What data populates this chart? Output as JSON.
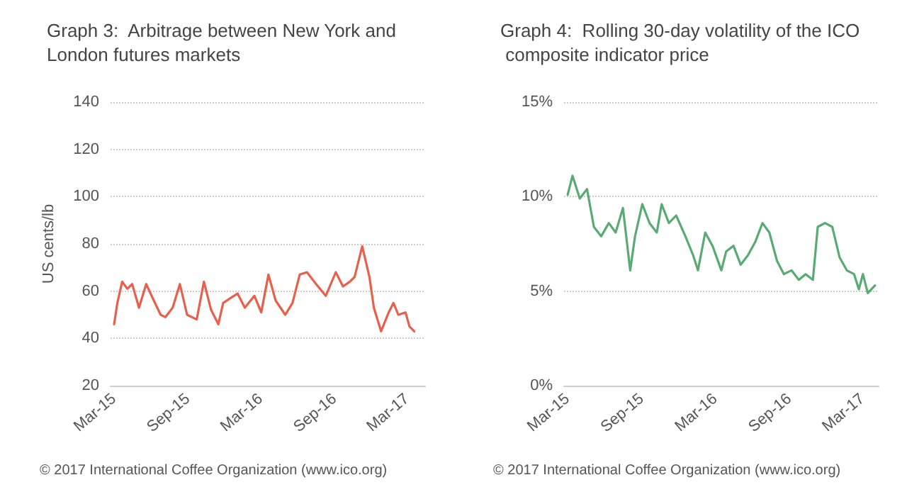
{
  "chart_data": [
    {
      "type": "line",
      "title": "Graph 3:  Arbitrage between New York and London futures markets",
      "ylabel": "US cents/lb",
      "x": [
        "2015-03-01",
        "2015-03-09",
        "2015-03-21",
        "2015-04-03",
        "2015-04-15",
        "2015-05-02",
        "2015-05-20",
        "2015-06-08",
        "2015-06-25",
        "2015-07-07",
        "2015-07-25",
        "2015-08-12",
        "2015-08-30",
        "2015-09-23",
        "2015-10-11",
        "2015-10-29",
        "2015-11-16",
        "2015-11-28",
        "2015-12-16",
        "2016-01-03",
        "2016-01-21",
        "2016-02-14",
        "2016-03-02",
        "2016-03-20",
        "2016-04-07",
        "2016-05-01",
        "2016-05-19",
        "2016-06-06",
        "2016-06-24",
        "2016-07-17",
        "2016-08-10",
        "2016-09-04",
        "2016-09-22",
        "2016-10-09",
        "2016-10-21",
        "2016-11-09",
        "2016-11-27",
        "2016-12-08",
        "2016-12-26",
        "2017-01-14",
        "2017-01-26",
        "2017-02-07",
        "2017-02-25",
        "2017-03-07",
        "2017-03-19"
      ],
      "series": [
        {
          "color": "#e8604c",
          "values": [
            46,
            55,
            64,
            61,
            63,
            53,
            63,
            56,
            50,
            49,
            53,
            63,
            50,
            48,
            64,
            52,
            46,
            55,
            57,
            59,
            53,
            58,
            51,
            67,
            56,
            50,
            55,
            67,
            68,
            63,
            58,
            68,
            62,
            64,
            66,
            79,
            66,
            53,
            43,
            51,
            55,
            50,
            51,
            45,
            43
          ]
        }
      ],
      "xlim": [
        "2015-02-20",
        "2017-04-15"
      ],
      "xticks": [
        {
          "value": "2015-03-01",
          "label": "Mar-15"
        },
        {
          "value": "2015-09-01",
          "label": "Sep-15"
        },
        {
          "value": "2016-03-01",
          "label": "Mar-16"
        },
        {
          "value": "2016-09-01",
          "label": "Sep-16"
        },
        {
          "value": "2017-03-01",
          "label": "Mar-17"
        }
      ],
      "ylim": [
        20,
        140
      ],
      "yticks": [
        20,
        40,
        60,
        80,
        100,
        120,
        140
      ],
      "grid": "y",
      "marker": "none",
      "line_style": "solid",
      "annotations": [
        "© 2017 International Coffee Organization (www.ico.org)"
      ]
    },
    {
      "type": "line",
      "title": "Graph 4:  Rolling 30-day volatility of the ICO composite indicator price",
      "x": [
        "2015-03-01",
        "2015-03-13",
        "2015-03-31",
        "2015-04-18",
        "2015-05-05",
        "2015-05-23",
        "2015-06-11",
        "2015-06-28",
        "2015-07-16",
        "2015-08-03",
        "2015-08-15",
        "2015-09-02",
        "2015-09-20",
        "2015-10-08",
        "2015-10-20",
        "2015-11-07",
        "2015-11-25",
        "2015-12-18",
        "2016-01-06",
        "2016-01-18",
        "2016-02-05",
        "2016-02-23",
        "2016-03-16",
        "2016-03-28",
        "2016-04-15",
        "2016-05-03",
        "2016-05-21",
        "2016-06-08",
        "2016-06-26",
        "2016-07-13",
        "2016-08-01",
        "2016-08-18",
        "2016-09-06",
        "2016-09-24",
        "2016-10-11",
        "2016-10-29",
        "2016-11-10",
        "2016-11-28",
        "2016-12-16",
        "2017-01-03",
        "2017-01-21",
        "2017-02-08",
        "2017-02-20",
        "2017-03-02",
        "2017-03-14",
        "2017-04-01"
      ],
      "series": [
        {
          "color": "#5aaa74",
          "values": [
            10.1,
            11.1,
            9.9,
            10.4,
            8.4,
            7.9,
            8.6,
            8.1,
            9.4,
            6.1,
            7.9,
            9.6,
            8.6,
            8.1,
            9.6,
            8.6,
            9.0,
            7.9,
            6.9,
            6.1,
            8.1,
            7.4,
            6.1,
            7.1,
            7.4,
            6.4,
            6.9,
            7.6,
            8.6,
            8.1,
            6.6,
            5.9,
            6.1,
            5.6,
            5.9,
            5.6,
            8.4,
            8.6,
            8.4,
            6.8,
            6.1,
            5.9,
            5.1,
            5.9,
            4.9,
            5.3
          ]
        }
      ],
      "xlim": [
        "2015-02-20",
        "2017-04-10"
      ],
      "xticks": [
        {
          "value": "2015-03-01",
          "label": "Mar-15"
        },
        {
          "value": "2015-09-01",
          "label": "Sep-15"
        },
        {
          "value": "2016-03-01",
          "label": "Mar-16"
        },
        {
          "value": "2016-09-01",
          "label": "Sep-16"
        },
        {
          "value": "2017-03-01",
          "label": "Mar-17"
        }
      ],
      "ylim": [
        0,
        15
      ],
      "yticks": [
        {
          "value": 0,
          "label": "0%"
        },
        {
          "value": 5,
          "label": "5%"
        },
        {
          "value": 10,
          "label": "10%"
        },
        {
          "value": 15,
          "label": "15%"
        }
      ],
      "grid": "y",
      "marker": "none",
      "line_style": "solid",
      "annotations": [
        "© 2017 International Coffee Organization (www.ico.org)"
      ]
    }
  ]
}
